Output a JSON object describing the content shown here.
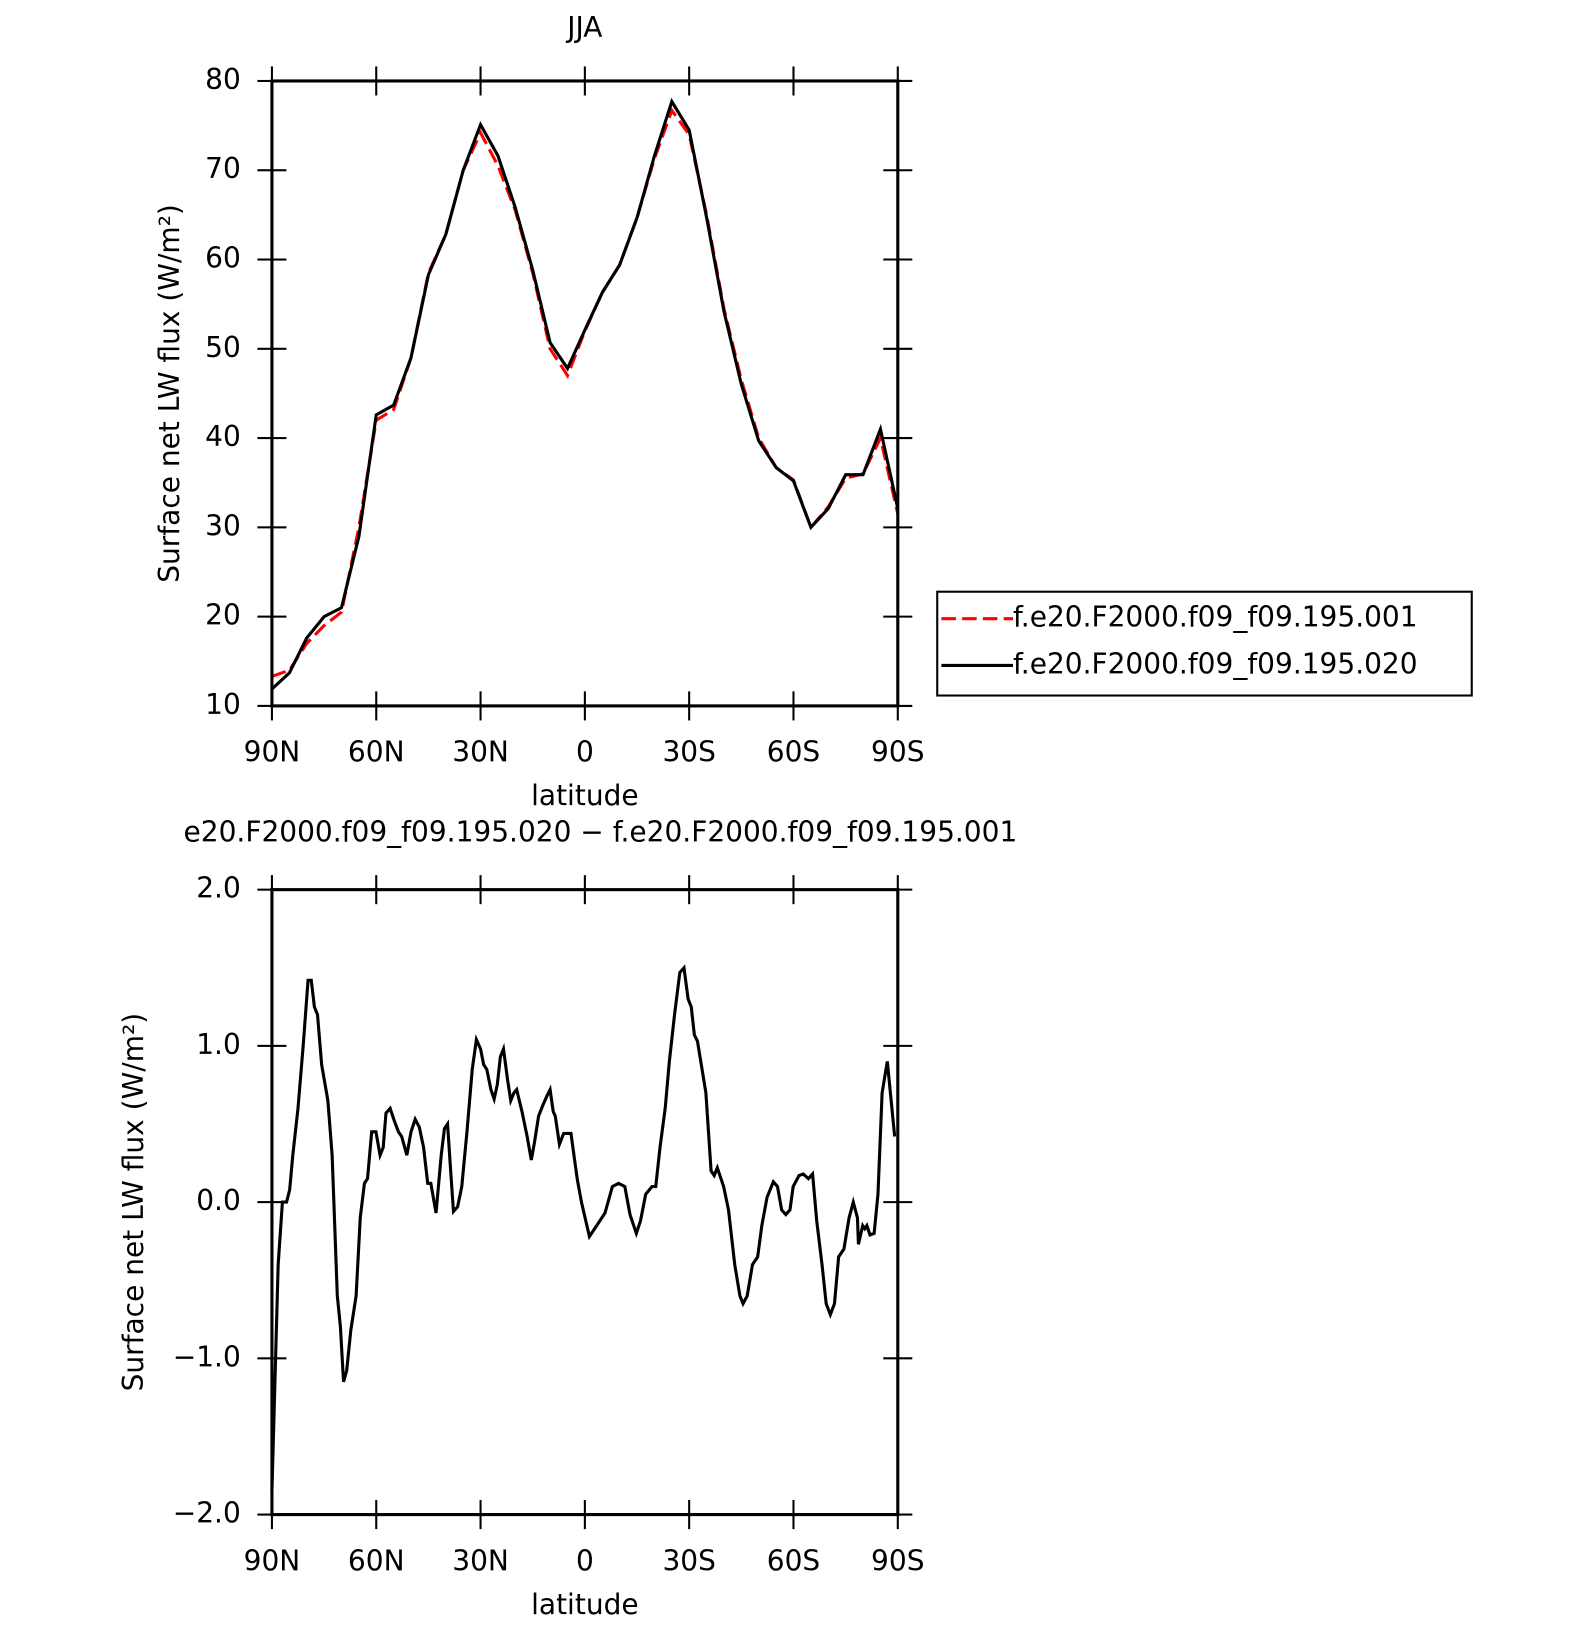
{
  "chart_data": [
    {
      "type": "line",
      "title": "JJA",
      "x_label": "latitude",
      "y_label": "Surface net LW flux (W/m²)",
      "xlim": [
        90,
        -90
      ],
      "ylim": [
        10,
        80
      ],
      "xticks": [
        {
          "value": 90,
          "label": "90N"
        },
        {
          "value": 60,
          "label": "60N"
        },
        {
          "value": 30,
          "label": "30N"
        },
        0,
        {
          "value": -30,
          "label": "30S"
        },
        {
          "value": -60,
          "label": "60S"
        },
        {
          "value": -90,
          "label": "90S"
        }
      ],
      "yticks": [
        10,
        20,
        30,
        40,
        50,
        60,
        70,
        80
      ],
      "legend": "outside-right",
      "x": [
        90,
        85,
        80,
        75,
        70,
        65,
        60,
        55,
        50,
        45,
        40,
        35,
        30,
        25,
        20,
        15,
        10,
        5,
        0,
        -5,
        -10,
        -15,
        -20,
        -25,
        -30,
        -35,
        -40,
        -45,
        -50,
        -55,
        -60,
        -65,
        -70,
        -75,
        -80,
        -85,
        -90
      ],
      "series": [
        {
          "name": "f.e20.F2000.f09_f09.195.001",
          "color": "#ff0000",
          "dashed": true,
          "values": [
            13.3,
            14,
            17,
            19,
            20.5,
            30,
            42,
            43.2,
            49,
            58.5,
            62.8,
            70,
            74.2,
            70.5,
            65.5,
            58.5,
            50,
            47,
            52,
            56.3,
            59.4,
            64.7,
            71.3,
            76.7,
            74,
            65,
            54.5,
            46.5,
            40,
            36.7,
            35.3,
            30,
            32.3,
            35.5,
            36,
            40,
            31.5
          ]
        },
        {
          "name": "f.e20.F2000.f09_f09.195.020",
          "color": "#000000",
          "dashed": false,
          "values": [
            11.9,
            13.7,
            17.6,
            20,
            21,
            29,
            42.6,
            43.7,
            49,
            58.3,
            62.8,
            70,
            75.1,
            71.6,
            65.8,
            58.8,
            50.7,
            47.8,
            52.1,
            56.3,
            59.4,
            64.7,
            71.6,
            77.7,
            74.5,
            64.7,
            54.2,
            46,
            39.7,
            36.7,
            35.2,
            30,
            32.1,
            35.9,
            35.9,
            41,
            32.1
          ]
        }
      ]
    },
    {
      "type": "line",
      "title": "e20.F2000.f09_f09.195.020 − f.e20.F2000.f09_f09.195.001",
      "x_label": "latitude",
      "y_label": "Surface net LW flux (W/m²)",
      "xlim": [
        90,
        -90
      ],
      "ylim": [
        -2,
        2
      ],
      "xticks": [
        {
          "value": 90,
          "label": "90N"
        },
        {
          "value": 60,
          "label": "60N"
        },
        {
          "value": 30,
          "label": "30N"
        },
        0,
        {
          "value": -30,
          "label": "30S"
        },
        {
          "value": -60,
          "label": "60S"
        },
        {
          "value": -90,
          "label": "90S"
        }
      ],
      "yticks": [
        {
          "value": -2,
          "label": "−2.0"
        },
        {
          "value": -1,
          "label": "−1.0"
        },
        {
          "value": 0,
          "label": "0.0"
        },
        {
          "value": 1,
          "label": "1.0"
        },
        {
          "value": 2,
          "label": "2.0"
        }
      ],
      "x": [
        90,
        88.2,
        87,
        85.8,
        84.9,
        84,
        82.5,
        81,
        79.6,
        78.7,
        77.8,
        76.9,
        75.7,
        73.9,
        72.7,
        71.2,
        70.3,
        69.4,
        68.5,
        67.3,
        65.8,
        64.6,
        63.4,
        62.5,
        61.3,
        60.1,
        58.9,
        58,
        57.2,
        56,
        54.8,
        53.6,
        52.7,
        51.2,
        50,
        48.8,
        47.6,
        46.4,
        45.2,
        44.3,
        42.8,
        41.3,
        40.4,
        39.5,
        38.6,
        37.8,
        36.6,
        35.4,
        33.9,
        32.4,
        31.2,
        30,
        29.1,
        28.2,
        27,
        26.1,
        25.2,
        24.3,
        23.4,
        22.2,
        21.3,
        20.4,
        19.6,
        18.1,
        16.6,
        15.4,
        14.5,
        13.3,
        12.1,
        10.9,
        10,
        9.1,
        8.5,
        7.3,
        6.1,
        4.9,
        4,
        2.2,
        1,
        -1.3,
        -3.4,
        -5.8,
        -7.9,
        -9.7,
        -11.5,
        -13,
        -14.8,
        -16,
        -17.5,
        -19.3,
        -20.4,
        -21.6,
        -23.1,
        -24.3,
        -25.8,
        -27.3,
        -28.5,
        -29.7,
        -30.6,
        -31.5,
        -32.4,
        -34.8,
        -36.3,
        -37.2,
        -38.1,
        -39.9,
        -41.3,
        -43.1,
        -44.6,
        -45.5,
        -46.7,
        -48.2,
        -49.7,
        -50.9,
        -52.4,
        -54.2,
        -55.4,
        -56.6,
        -57.8,
        -59,
        -59.9,
        -61.6,
        -62.8,
        -64.3,
        -65.5,
        -66.7,
        -68.2,
        -69.4,
        -70.6,
        -71.8,
        -73,
        -74.5,
        -76,
        -77.2,
        -78.4,
        -78.7,
        -79.9,
        -80.5,
        -81.1,
        -82,
        -83.2,
        -84.3,
        -85.5,
        -87,
        -89.1
      ],
      "series": [
        {
          "name": null,
          "color": "#000000",
          "dashed": false,
          "values": [
            -1.85,
            -0.4,
            0,
            0,
            0.08,
            0.3,
            0.6,
            1,
            1.42,
            1.42,
            1.25,
            1.2,
            0.88,
            0.65,
            0.3,
            -0.6,
            -0.8,
            -1.15,
            -1.08,
            -0.82,
            -0.6,
            -0.1,
            0.12,
            0.15,
            0.45,
            0.45,
            0.3,
            0.35,
            0.57,
            0.6,
            0.52,
            0.45,
            0.42,
            0.3,
            0.45,
            0.53,
            0.48,
            0.35,
            0.12,
            0.12,
            -0.07,
            0.3,
            0.47,
            0.5,
            0.2,
            -0.06,
            -0.03,
            0.1,
            0.45,
            0.85,
            1.04,
            0.98,
            0.88,
            0.85,
            0.72,
            0.66,
            0.75,
            0.93,
            0.98,
            0.78,
            0.65,
            0.7,
            0.72,
            0.58,
            0.42,
            0.27,
            0.38,
            0.55,
            0.62,
            0.68,
            0.72,
            0.58,
            0.55,
            0.37,
            0.44,
            0.44,
            0.44,
            0.15,
            0,
            -0.22,
            -0.15,
            -0.07,
            0.1,
            0.12,
            0.1,
            -0.08,
            -0.2,
            -0.12,
            0.05,
            0.1,
            0.1,
            0.35,
            0.6,
            0.9,
            1.2,
            1.47,
            1.5,
            1.3,
            1.25,
            1.07,
            1.03,
            0.7,
            0.2,
            0.17,
            0.22,
            0.1,
            -0.05,
            -0.4,
            -0.6,
            -0.65,
            -0.6,
            -0.4,
            -0.35,
            -0.15,
            0.03,
            0.13,
            0.1,
            -0.05,
            -0.08,
            -0.05,
            0.1,
            0.17,
            0.18,
            0.15,
            0.18,
            -0.12,
            -0.4,
            -0.65,
            -0.72,
            -0.65,
            -0.35,
            -0.3,
            -0.1,
            0,
            -0.1,
            -0.27,
            -0.15,
            -0.17,
            -0.15,
            -0.21,
            -0.2,
            0.05,
            0.7,
            0.9,
            0.42
          ]
        }
      ]
    }
  ]
}
